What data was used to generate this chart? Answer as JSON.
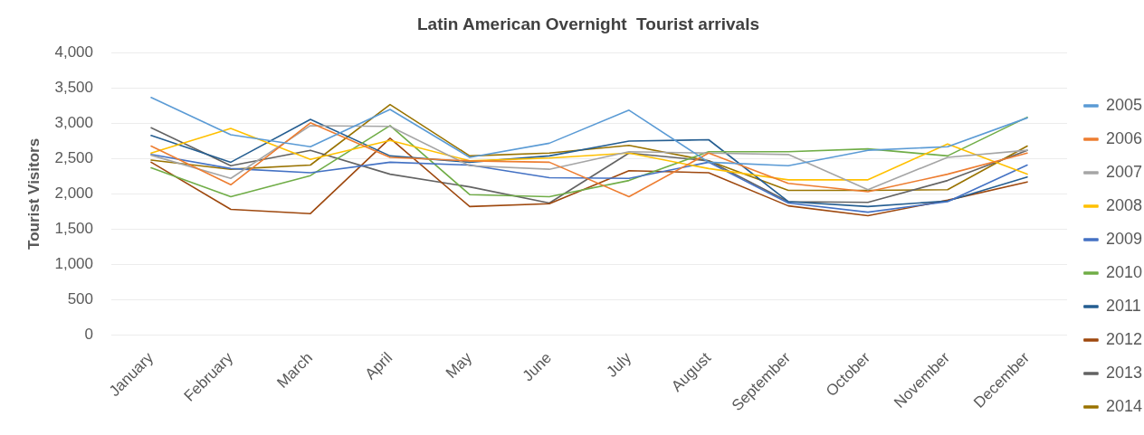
{
  "chart_data": {
    "type": "line",
    "title": "Latin American Overnight  Tourist arrivals",
    "ylabel": "Tourist Visitors",
    "categories": [
      "January",
      "February",
      "March",
      "April",
      "May",
      "June",
      "July",
      "August",
      "September",
      "October",
      "November",
      "December"
    ],
    "series": [
      {
        "name": "2005",
        "color": "#5b9bd5",
        "values": [
          3370,
          2840,
          2670,
          3200,
          2520,
          2720,
          3190,
          2450,
          2400,
          2620,
          2670,
          3080
        ]
      },
      {
        "name": "2006",
        "color": "#ed7d31",
        "values": [
          2680,
          2130,
          3010,
          2520,
          2470,
          2450,
          1960,
          2580,
          2150,
          2030,
          2280,
          2580
        ]
      },
      {
        "name": "2007",
        "color": "#a5a5a5",
        "values": [
          2550,
          2220,
          2970,
          2960,
          2400,
          2350,
          2600,
          2580,
          2560,
          2060,
          2520,
          2620
        ]
      },
      {
        "name": "2008",
        "color": "#ffc000",
        "values": [
          2580,
          2930,
          2490,
          2760,
          2470,
          2510,
          2580,
          2360,
          2200,
          2200,
          2710,
          2280
        ]
      },
      {
        "name": "2009",
        "color": "#4472c4",
        "values": [
          2560,
          2360,
          2300,
          2450,
          2410,
          2230,
          2220,
          2450,
          1870,
          1740,
          1890,
          2410
        ]
      },
      {
        "name": "2010",
        "color": "#70ad47",
        "values": [
          2370,
          1960,
          2260,
          2970,
          1990,
          1960,
          2190,
          2600,
          2600,
          2640,
          2540,
          3090
        ]
      },
      {
        "name": "2011",
        "color": "#255e91",
        "values": [
          2830,
          2450,
          3060,
          2540,
          2450,
          2540,
          2750,
          2770,
          1890,
          1820,
          1900,
          2240
        ]
      },
      {
        "name": "2012",
        "color": "#9e480e",
        "values": [
          2450,
          1780,
          1720,
          2790,
          1820,
          1860,
          2330,
          2300,
          1830,
          1690,
          1910,
          2170
        ]
      },
      {
        "name": "2013",
        "color": "#636363",
        "values": [
          2940,
          2400,
          2620,
          2280,
          2100,
          1870,
          2580,
          2470,
          1890,
          1880,
          2190,
          2620
        ]
      },
      {
        "name": "2014",
        "color": "#997300",
        "values": [
          2480,
          2350,
          2410,
          3270,
          2540,
          2580,
          2690,
          2470,
          2050,
          2050,
          2060,
          2680
        ]
      }
    ],
    "ylim": [
      0,
      4000
    ],
    "yticks": [
      0,
      500,
      {
        "value": 1000,
        "label": "1,000"
      },
      {
        "value": 1500,
        "label": "1,500"
      },
      {
        "value": 2000,
        "label": "2,000"
      },
      {
        "value": 2500,
        "label": "2,500"
      },
      {
        "value": 3000,
        "label": "3,000"
      },
      {
        "value": 3500,
        "label": "3,500"
      },
      {
        "value": 4000,
        "label": "4,000"
      }
    ],
    "grid": "y",
    "legend": "right",
    "marker": "none",
    "line_style": "solid"
  }
}
